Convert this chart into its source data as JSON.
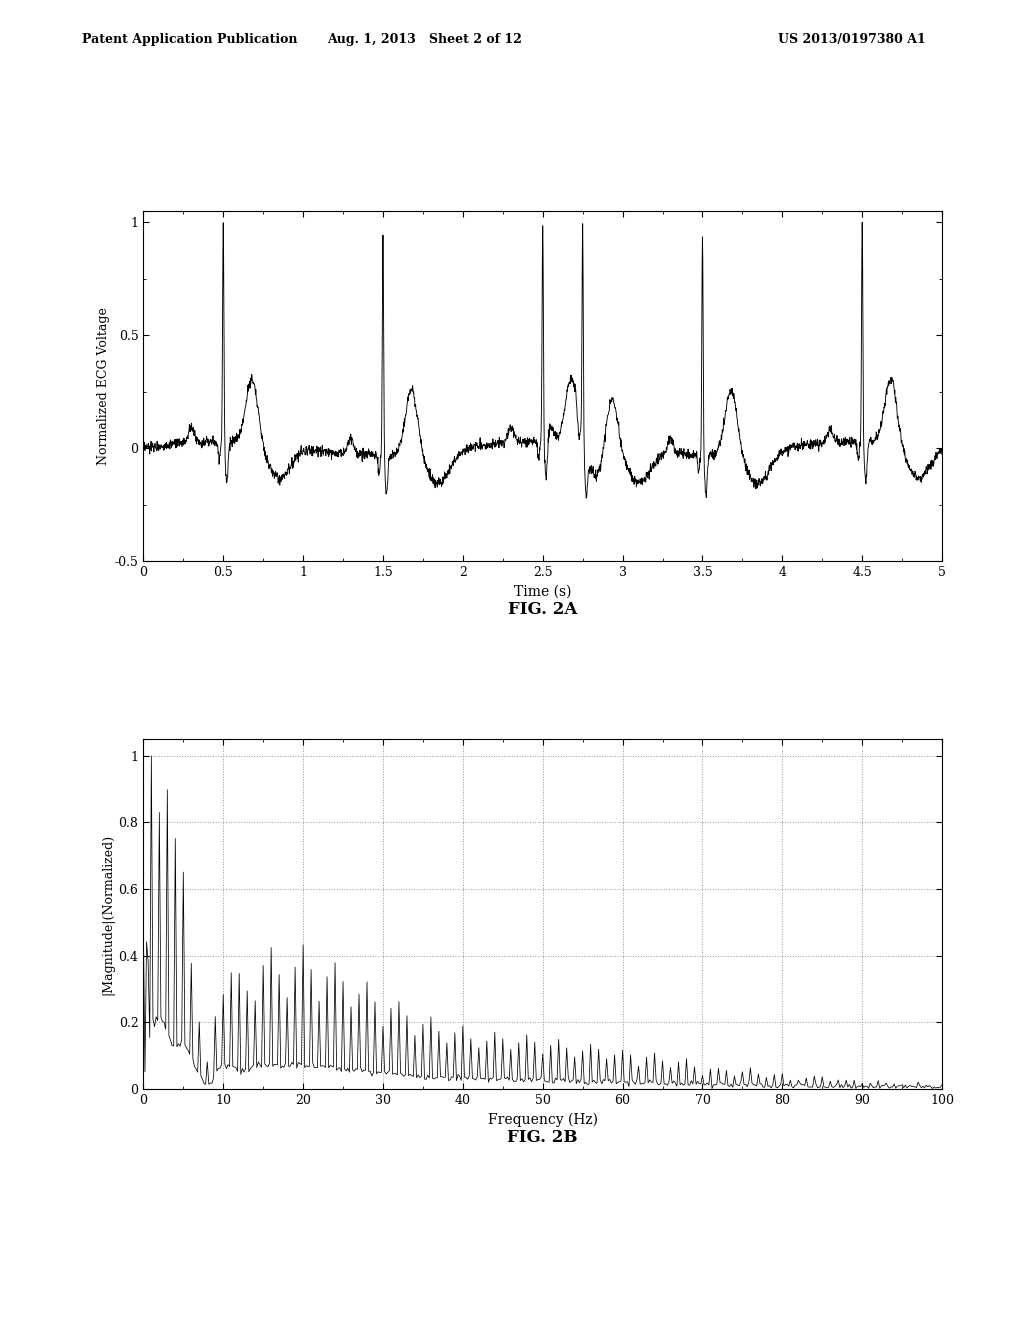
{
  "header_left": "Patent Application Publication",
  "header_mid": "Aug. 1, 2013   Sheet 2 of 12",
  "header_right": "US 2013/0197380 A1",
  "fig2a_label": "FIG. 2A",
  "fig2b_label": "FIG. 2B",
  "fig2a_xlabel": "Time (s)",
  "fig2a_ylabel": "Normalized ECG Voltage",
  "fig2a_xlim": [
    0,
    5
  ],
  "fig2a_ylim": [
    -0.5,
    1.05
  ],
  "fig2a_xticks": [
    0,
    0.5,
    1,
    1.5,
    2,
    2.5,
    3,
    3.5,
    4,
    4.5,
    5
  ],
  "fig2a_yticks": [
    -0.5,
    0,
    0.5,
    1
  ],
  "fig2b_xlabel": "Frequency (Hz)",
  "fig2b_ylabel": "|Magnitude|(Normalized)",
  "fig2b_xlim": [
    0,
    100
  ],
  "fig2b_ylim": [
    0,
    1.05
  ],
  "fig2b_xticks": [
    0,
    10,
    20,
    30,
    40,
    50,
    60,
    70,
    80,
    90,
    100
  ],
  "fig2b_yticks": [
    0,
    0.2,
    0.4,
    0.6,
    0.8,
    1
  ],
  "background_color": "#ffffff",
  "line_color": "#000000",
  "grid_color": "#999999",
  "header_fontsize": 9,
  "axis_fontsize": 10,
  "ylabel_fontsize": 9,
  "caption_fontsize": 12
}
